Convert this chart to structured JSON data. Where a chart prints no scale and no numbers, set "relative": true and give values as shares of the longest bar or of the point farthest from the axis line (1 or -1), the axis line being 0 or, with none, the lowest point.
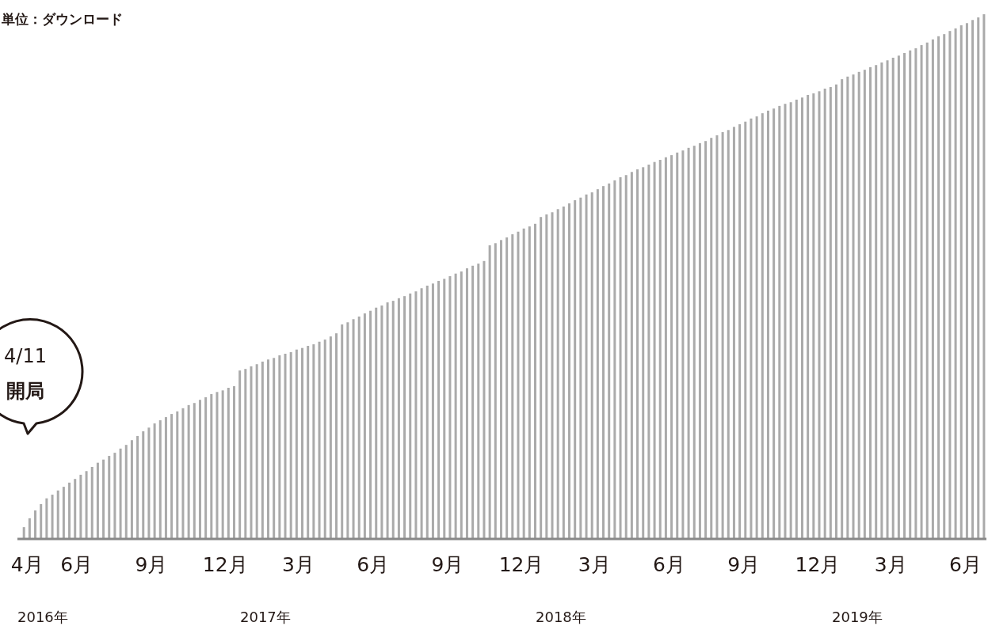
{
  "chart_data": {
    "type": "bar",
    "ylabel": "単位：ダウンロード",
    "relative": true,
    "color": "#aaaaaa",
    "x": [
      "2016-04-11",
      "2016-04-18",
      "2016-04-25",
      "2016-05-02",
      "2016-05-09",
      "2016-05-16",
      "2016-05-23",
      "2016-05-30",
      "2016-06-06",
      "2016-06-13",
      "2016-06-20",
      "2016-06-27",
      "2016-07-04",
      "2016-07-11",
      "2016-07-18",
      "2016-07-25",
      "2016-08-01",
      "2016-08-08",
      "2016-08-15",
      "2016-08-22",
      "2016-08-29",
      "2016-09-05",
      "2016-09-12",
      "2016-09-19",
      "2016-09-26",
      "2016-10-03",
      "2016-10-10",
      "2016-10-17",
      "2016-10-24",
      "2016-10-31",
      "2016-11-07",
      "2016-11-14",
      "2016-11-21",
      "2016-11-28",
      "2016-12-05",
      "2016-12-12",
      "2016-12-19",
      "2016-12-26",
      "2017-01-02",
      "2017-01-09",
      "2017-01-16",
      "2017-01-23",
      "2017-01-30",
      "2017-02-06",
      "2017-02-13",
      "2017-02-20",
      "2017-02-27",
      "2017-03-06",
      "2017-03-13",
      "2017-03-20",
      "2017-03-27",
      "2017-04-03",
      "2017-04-10",
      "2017-04-17",
      "2017-04-24",
      "2017-05-01",
      "2017-05-08",
      "2017-05-15",
      "2017-05-22",
      "2017-05-29",
      "2017-06-05",
      "2017-06-12",
      "2017-06-19",
      "2017-06-26",
      "2017-07-03",
      "2017-07-10",
      "2017-07-17",
      "2017-07-24",
      "2017-07-31",
      "2017-08-07",
      "2017-08-14",
      "2017-08-21",
      "2017-08-28",
      "2017-09-04",
      "2017-09-11",
      "2017-09-18",
      "2017-09-25",
      "2017-10-02",
      "2017-10-09",
      "2017-10-16",
      "2017-10-23",
      "2017-10-30",
      "2017-11-06",
      "2017-11-13",
      "2017-11-20",
      "2017-11-27",
      "2017-12-04",
      "2017-12-11",
      "2017-12-18",
      "2017-12-25",
      "2018-01-01",
      "2018-01-08",
      "2018-01-15",
      "2018-01-22",
      "2018-01-29",
      "2018-02-05",
      "2018-02-12",
      "2018-02-19",
      "2018-02-26",
      "2018-03-05",
      "2018-03-12",
      "2018-03-19",
      "2018-03-26",
      "2018-04-02",
      "2018-04-09",
      "2018-04-16",
      "2018-04-23",
      "2018-04-30",
      "2018-05-07",
      "2018-05-14",
      "2018-05-21",
      "2018-05-28",
      "2018-06-04",
      "2018-06-11",
      "2018-06-18",
      "2018-06-25",
      "2018-07-02",
      "2018-07-09",
      "2018-07-16",
      "2018-07-23",
      "2018-07-30",
      "2018-08-06",
      "2018-08-13",
      "2018-08-20",
      "2018-08-27",
      "2018-09-03",
      "2018-09-10",
      "2018-09-17",
      "2018-09-24",
      "2018-10-01",
      "2018-10-08",
      "2018-10-15",
      "2018-10-22",
      "2018-10-29",
      "2018-11-05",
      "2018-11-12",
      "2018-11-19",
      "2018-11-26",
      "2018-12-03",
      "2018-12-10",
      "2018-12-17",
      "2018-12-24",
      "2018-12-31",
      "2019-01-07",
      "2019-01-14",
      "2019-01-21",
      "2019-01-28",
      "2019-02-04",
      "2019-02-11",
      "2019-02-18",
      "2019-02-25",
      "2019-03-04",
      "2019-03-11",
      "2019-03-18",
      "2019-03-25",
      "2019-04-01",
      "2019-04-08",
      "2019-04-15",
      "2019-04-22",
      "2019-04-29",
      "2019-05-06",
      "2019-05-13",
      "2019-05-20",
      "2019-05-27",
      "2019-06-03",
      "2019-06-10",
      "2019-06-17",
      "2019-06-24",
      "2019-07-01",
      "2019-07-08"
    ],
    "values": [
      0.021,
      0.038,
      0.053,
      0.065,
      0.076,
      0.083,
      0.091,
      0.098,
      0.106,
      0.113,
      0.121,
      0.128,
      0.136,
      0.144,
      0.15,
      0.157,
      0.163,
      0.171,
      0.178,
      0.187,
      0.195,
      0.204,
      0.211,
      0.219,
      0.225,
      0.231,
      0.237,
      0.242,
      0.248,
      0.254,
      0.258,
      0.264,
      0.269,
      0.275,
      0.279,
      0.282,
      0.287,
      0.29,
      0.32,
      0.323,
      0.328,
      0.332,
      0.337,
      0.341,
      0.344,
      0.349,
      0.352,
      0.355,
      0.36,
      0.363,
      0.367,
      0.37,
      0.375,
      0.379,
      0.385,
      0.391,
      0.408,
      0.412,
      0.418,
      0.423,
      0.429,
      0.434,
      0.44,
      0.444,
      0.45,
      0.453,
      0.458,
      0.462,
      0.467,
      0.471,
      0.477,
      0.482,
      0.486,
      0.491,
      0.495,
      0.5,
      0.505,
      0.509,
      0.515,
      0.52,
      0.524,
      0.529,
      0.559,
      0.563,
      0.569,
      0.574,
      0.58,
      0.585,
      0.591,
      0.595,
      0.6,
      0.613,
      0.618,
      0.622,
      0.628,
      0.633,
      0.639,
      0.645,
      0.65,
      0.656,
      0.66,
      0.666,
      0.672,
      0.677,
      0.683,
      0.689,
      0.693,
      0.699,
      0.704,
      0.708,
      0.713,
      0.718,
      0.722,
      0.727,
      0.731,
      0.736,
      0.74,
      0.745,
      0.749,
      0.754,
      0.758,
      0.764,
      0.769,
      0.775,
      0.779,
      0.785,
      0.79,
      0.795,
      0.801,
      0.805,
      0.811,
      0.816,
      0.82,
      0.825,
      0.829,
      0.832,
      0.837,
      0.841,
      0.846,
      0.849,
      0.853,
      0.858,
      0.861,
      0.866,
      0.876,
      0.881,
      0.885,
      0.89,
      0.894,
      0.899,
      0.903,
      0.908,
      0.912,
      0.917,
      0.921,
      0.926,
      0.931,
      0.935,
      0.941,
      0.946,
      0.952,
      0.958,
      0.962,
      0.968,
      0.973,
      0.979,
      0.983,
      0.989,
      0.994,
      1
    ],
    "xlim": [
      "2016-04-03",
      "2019-07-11"
    ],
    "xticks": [
      {
        "value": "2016-04-15",
        "label": "4月"
      },
      {
        "value": "2016-06-15",
        "label": "6月"
      },
      {
        "value": "2016-09-15",
        "label": "9月"
      },
      {
        "value": "2016-12-15",
        "label": "12月"
      },
      {
        "value": "2017-03-15",
        "label": "3月"
      },
      {
        "value": "2017-06-15",
        "label": "6月"
      },
      {
        "value": "2017-09-15",
        "label": "9月"
      },
      {
        "value": "2017-12-15",
        "label": "12月"
      },
      {
        "value": "2018-03-15",
        "label": "3月"
      },
      {
        "value": "2018-06-15",
        "label": "6月"
      },
      {
        "value": "2018-09-15",
        "label": "9月"
      },
      {
        "value": "2018-12-15",
        "label": "12月"
      },
      {
        "value": "2019-03-15",
        "label": "3月"
      },
      {
        "value": "2019-06-15",
        "label": "6月"
      }
    ],
    "annotations": [
      "2016年",
      "2017年",
      "2018年",
      "2019年",
      "4/11\n開局"
    ]
  }
}
